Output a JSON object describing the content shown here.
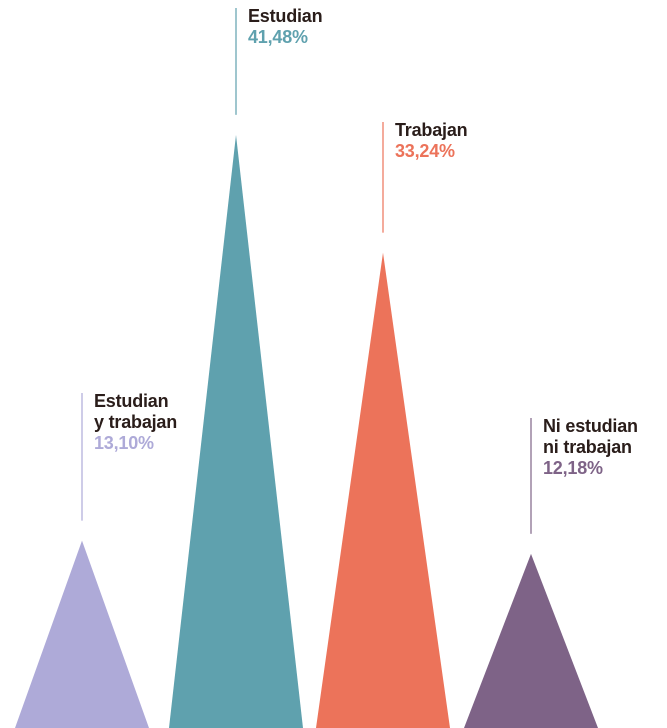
{
  "chart_data": {
    "type": "triangle",
    "categories": [
      "Estudian\ny trabajan",
      "Estudian",
      "Trabajan",
      "Ni estudian\nni trabajan"
    ],
    "values": [
      13.1,
      41.48,
      33.24,
      12.18
    ],
    "value_labels": [
      "13,10%",
      "41,48%",
      "33,24%",
      "12,18%"
    ],
    "colors": [
      "#aeaad8",
      "#5fa1ae",
      "#ec735a",
      "#7e6387"
    ]
  }
}
